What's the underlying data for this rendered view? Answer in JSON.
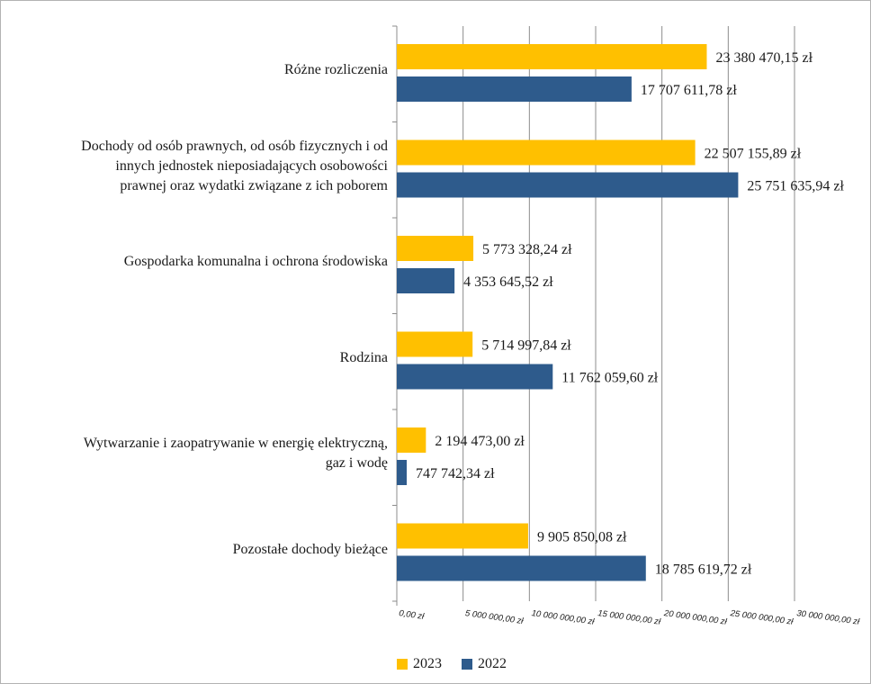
{
  "chart_data": {
    "type": "bar",
    "orientation": "horizontal",
    "categories": [
      "Różne rozliczenia",
      "Dochody od osób prawnych, od osób fizycznych i od\ninnych jednostek nieposiadających osobowości\nprawnej oraz wydatki związane z ich poborem",
      "Gospodarka komunalna i ochrona środowiska",
      "Rodzina",
      "Wytwarzanie i zaopatrywanie w energię elektryczną,\ngaz i wodę",
      "Pozostałe dochody bieżące"
    ],
    "series": [
      {
        "name": "2023",
        "color": "#ffc000",
        "values": [
          23380470.15,
          22507155.89,
          5773328.24,
          5714997.84,
          2194473.0,
          9905850.08
        ],
        "labels": [
          "23 380 470,15 zł",
          "22 507 155,89 zł",
          "5 773 328,24 zł",
          "5 714 997,84 zł",
          "2 194 473,00 zł",
          "9 905 850,08 zł"
        ]
      },
      {
        "name": "2022",
        "color": "#2e5b8c",
        "values": [
          17707611.78,
          25751635.94,
          4353645.52,
          11762059.6,
          747742.34,
          18785619.72
        ],
        "labels": [
          "17 707 611,78 zł",
          "25 751 635,94 zł",
          "4 353 645,52 zł",
          "11 762 059,60 zł",
          "747 742,34 zł",
          "18 785 619,72 zł"
        ]
      }
    ],
    "xlim": [
      0,
      30000000
    ],
    "xticks": [
      0,
      5000000,
      10000000,
      15000000,
      20000000,
      25000000,
      30000000
    ],
    "xtick_labels": [
      "0,00 zł",
      "5 000 000,00 zł",
      "10 000 000,00 zł",
      "15 000 000,00 zł",
      "20 000 000,00 zł",
      "25 000 000,00 zł",
      "30 000 000,00 zł"
    ],
    "grid": true,
    "legend_position": "bottom"
  },
  "legend": {
    "item_2023": "2023",
    "item_2022": "2022"
  }
}
